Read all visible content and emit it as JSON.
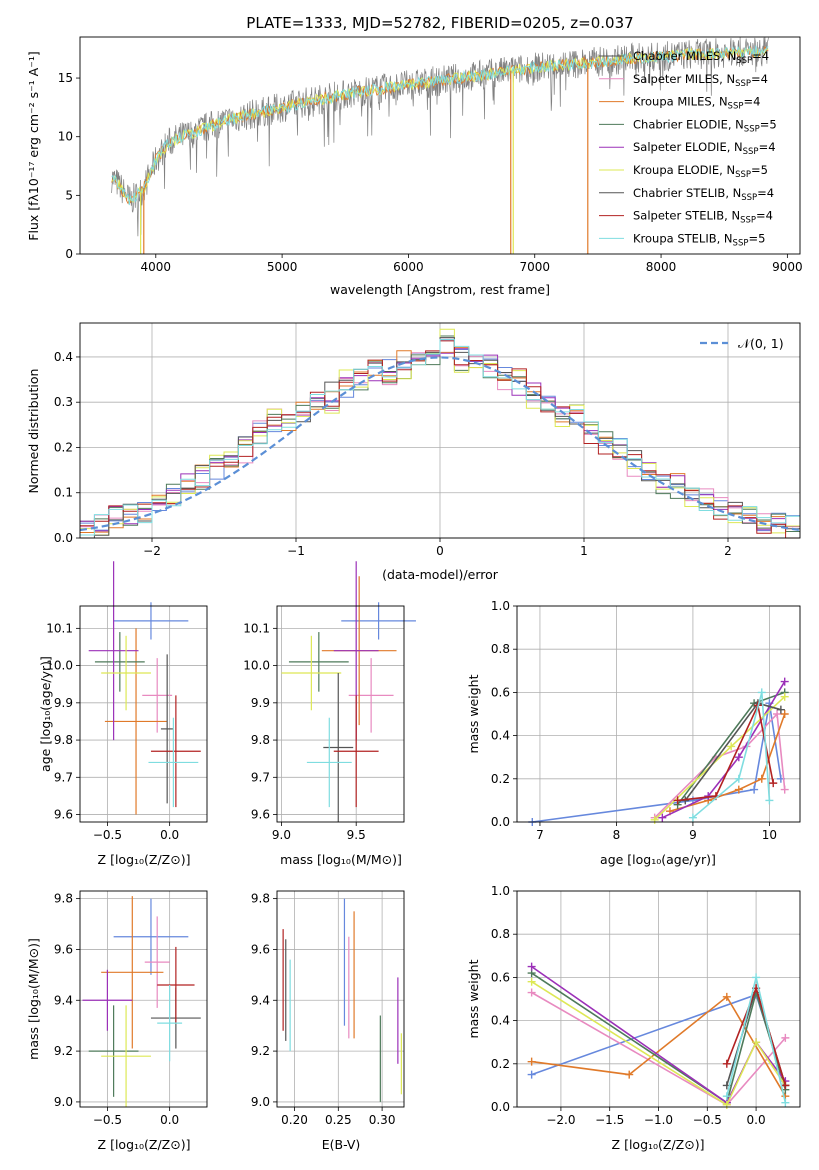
{
  "figure_title": "PLATE=1333, MJD=52782, FIBERID=0205, z=0.037",
  "colors": [
    "#6688dd",
    "#e88ac0",
    "#e07a2a",
    "#4e7a5a",
    "#9b30b8",
    "#dde855",
    "#555555",
    "#b22222",
    "#7fdde0"
  ],
  "legend": [
    {
      "name": "Chabrier MILES, N",
      "sub": "SSP",
      "tail": "=4",
      "color": "#555555"
    },
    {
      "name": "Salpeter MILES, N",
      "sub": "SSP",
      "tail": "=4",
      "color": "#e88ac0"
    },
    {
      "name": "Kroupa MILES, N",
      "sub": "SSP",
      "tail": "=4",
      "color": "#e07a2a"
    },
    {
      "name": "Chabrier ELODIE, N",
      "sub": "SSP",
      "tail": "=5",
      "color": "#4e7a5a"
    },
    {
      "name": "Salpeter ELODIE, N",
      "sub": "SSP",
      "tail": "=4",
      "color": "#9b30b8"
    },
    {
      "name": "Kroupa ELODIE, N",
      "sub": "SSP",
      "tail": "=5",
      "color": "#dde855"
    },
    {
      "name": "Chabrier STELIB, N",
      "sub": "SSP",
      "tail": "=4",
      "color": "#555555"
    },
    {
      "name": "Salpeter STELIB, N",
      "sub": "SSP",
      "tail": "=4",
      "color": "#b22222"
    },
    {
      "name": "Kroupa STELIB, N",
      "sub": "SSP",
      "tail": "=5",
      "color": "#7fdde0"
    }
  ],
  "hist_legend": "𝒩(0, 1)",
  "labels": {
    "spec_x": "wavelength [Angstrom, rest frame]",
    "spec_y": "Flux [fλ10⁻¹⁷ erg cm⁻² s⁻¹ A⁻¹]",
    "hist_x": "(data-model)/error",
    "hist_y": "Normed distribution",
    "age_y": "age  [log₁₀(age/yr)]",
    "z_x": "Z [log₁₀(Z/Z⊙)]",
    "mass_x": "mass [log₁₀(M/M⊙)]",
    "mw_y": "mass weight",
    "age_x": "age  [log₁₀(age/yr)]",
    "mass_y": "mass [log₁₀(M/M⊙)]",
    "ebv_x": "E(B-V)"
  },
  "chart_data": [
    {
      "type": "line",
      "panel": "spectrum",
      "xlim": [
        3400,
        9100
      ],
      "ylim": [
        0,
        18.5
      ],
      "xticks": [
        4000,
        5000,
        6000,
        7000,
        8000,
        9000
      ],
      "yticks": [
        0,
        5,
        10,
        15
      ],
      "series": [
        {
          "name": "data",
          "x": [
            3650,
            3700,
            3800,
            3900,
            4000,
            4100,
            4200,
            4300,
            4400,
            4600,
            4800,
            5000,
            5200,
            5400,
            5600,
            5800,
            6000,
            6200,
            6400,
            6600,
            6800,
            7000,
            7200,
            7400,
            7600,
            7800,
            8000,
            8200,
            8400,
            8600,
            8800
          ],
          "y": [
            6.5,
            6.0,
            4.5,
            5.5,
            8.0,
            9.5,
            10.0,
            10.3,
            10.8,
            11.5,
            12.0,
            12.5,
            13.0,
            13.4,
            13.8,
            14.1,
            14.4,
            14.7,
            15.0,
            15.3,
            15.6,
            15.9,
            16.1,
            16.3,
            16.5,
            16.7,
            16.8,
            17.0,
            17.1,
            17.2,
            17.3
          ]
        },
        {
          "name": "models",
          "x": [
            3650,
            3700,
            3800,
            3900,
            4000,
            4100,
            4200,
            4300,
            4400,
            4600,
            4800,
            5000,
            5200,
            5400,
            5600,
            5800,
            6000,
            6200,
            6400,
            6600,
            6800,
            7000,
            7200,
            7400,
            7600,
            7800,
            8000,
            8200,
            8400,
            8600,
            8800
          ],
          "y": [
            6.3,
            5.5,
            5.2,
            5.8,
            8.3,
            9.6,
            10.1,
            10.4,
            10.9,
            11.6,
            12.1,
            12.6,
            13.1,
            13.5,
            13.9,
            14.2,
            14.5,
            14.8,
            15.1,
            15.4,
            15.7,
            16.0,
            16.2,
            16.4,
            16.6,
            16.8,
            16.9,
            17.1,
            17.2,
            17.3,
            17.4
          ]
        }
      ]
    },
    {
      "type": "bar",
      "panel": "residual_histogram",
      "xlim": [
        -2.5,
        2.5
      ],
      "ylim": [
        0,
        0.475
      ],
      "xticks": [
        -2,
        -1,
        0,
        1,
        2
      ],
      "yticks": [
        0.0,
        0.1,
        0.2,
        0.3,
        0.4
      ],
      "bin_edges": [
        -2.5,
        -2.4,
        -2.3,
        -2.2,
        -2.1,
        -2.0,
        -1.9,
        -1.8,
        -1.7,
        -1.6,
        -1.5,
        -1.4,
        -1.3,
        -1.2,
        -1.1,
        -1.0,
        -0.9,
        -0.8,
        -0.7,
        -0.6,
        -0.5,
        -0.4,
        -0.3,
        -0.2,
        -0.1,
        0.0,
        0.1,
        0.2,
        0.3,
        0.4,
        0.5,
        0.6,
        0.7,
        0.8,
        0.9,
        1.0,
        1.1,
        1.2,
        1.3,
        1.4,
        1.5,
        1.6,
        1.7,
        1.8,
        1.9,
        2.0,
        2.1,
        2.2,
        2.3,
        2.4,
        2.5
      ],
      "series": [
        {
          "name": "h1",
          "values": [
            0.025,
            0.03,
            0.045,
            0.05,
            0.055,
            0.07,
            0.09,
            0.12,
            0.14,
            0.15,
            0.16,
            0.2,
            0.23,
            0.25,
            0.26,
            0.28,
            0.3,
            0.32,
            0.33,
            0.36,
            0.37,
            0.38,
            0.4,
            0.39,
            0.41,
            0.42,
            0.41,
            0.39,
            0.38,
            0.36,
            0.34,
            0.33,
            0.3,
            0.28,
            0.26,
            0.25,
            0.22,
            0.2,
            0.17,
            0.15,
            0.13,
            0.12,
            0.1,
            0.08,
            0.07,
            0.06,
            0.05,
            0.04,
            0.03,
            0.025
          ]
        },
        {
          "name": "h2",
          "values": [
            0.02,
            0.028,
            0.05,
            0.045,
            0.06,
            0.075,
            0.095,
            0.11,
            0.13,
            0.16,
            0.17,
            0.19,
            0.24,
            0.27,
            0.25,
            0.29,
            0.31,
            0.3,
            0.35,
            0.34,
            0.38,
            0.36,
            0.37,
            0.41,
            0.4,
            0.44,
            0.39,
            0.4,
            0.37,
            0.35,
            0.36,
            0.31,
            0.29,
            0.27,
            0.28,
            0.23,
            0.21,
            0.18,
            0.16,
            0.14,
            0.12,
            0.11,
            0.09,
            0.085,
            0.065,
            0.055,
            0.045,
            0.035,
            0.028,
            0.02
          ]
        }
      ],
      "gaussian": {
        "mean": 0,
        "sigma": 1
      }
    },
    {
      "type": "scatter",
      "panel": "age_vs_Z",
      "xlim": [
        -0.72,
        0.3
      ],
      "ylim": [
        9.58,
        10.16
      ],
      "xticks": [
        -0.5,
        0.0
      ],
      "yticks": [
        9.6,
        9.7,
        9.8,
        9.9,
        10.0,
        10.1
      ]
    },
    {
      "type": "scatter",
      "panel": "age_vs_mass",
      "xlim": [
        8.97,
        9.82
      ],
      "ylim": [
        9.58,
        10.16
      ],
      "xticks": [
        9.0,
        9.5
      ],
      "yticks": [
        9.6,
        9.7,
        9.8,
        9.9,
        10.0,
        10.1
      ]
    },
    {
      "type": "line",
      "panel": "massweight_vs_age",
      "xlim": [
        6.7,
        10.4
      ],
      "ylim": [
        0,
        1
      ],
      "xticks": [
        7,
        8,
        9,
        10
      ],
      "yticks": [
        0.0,
        0.2,
        0.4,
        0.6,
        0.8,
        1.0
      ]
    },
    {
      "type": "scatter",
      "panel": "mass_vs_Z",
      "xlim": [
        -0.72,
        0.3
      ],
      "ylim": [
        8.98,
        9.83
      ],
      "xticks": [
        -0.5,
        0.0
      ],
      "yticks": [
        9.0,
        9.2,
        9.4,
        9.6,
        9.8
      ]
    },
    {
      "type": "scatter",
      "panel": "mass_vs_ebv",
      "xlim": [
        0.18,
        0.325
      ],
      "ylim": [
        8.98,
        9.83
      ],
      "xticks": [
        0.2,
        0.25,
        0.3
      ],
      "yticks": [
        9.0,
        9.2,
        9.4,
        9.6,
        9.8
      ]
    },
    {
      "type": "line",
      "panel": "massweight_vs_Z",
      "xlim": [
        -2.45,
        0.45
      ],
      "ylim": [
        0,
        1
      ],
      "xticks": [
        -2.0,
        -1.5,
        -1.0,
        -0.5,
        0.0
      ],
      "yticks": [
        0.0,
        0.2,
        0.4,
        0.6,
        0.8,
        1.0
      ]
    }
  ]
}
